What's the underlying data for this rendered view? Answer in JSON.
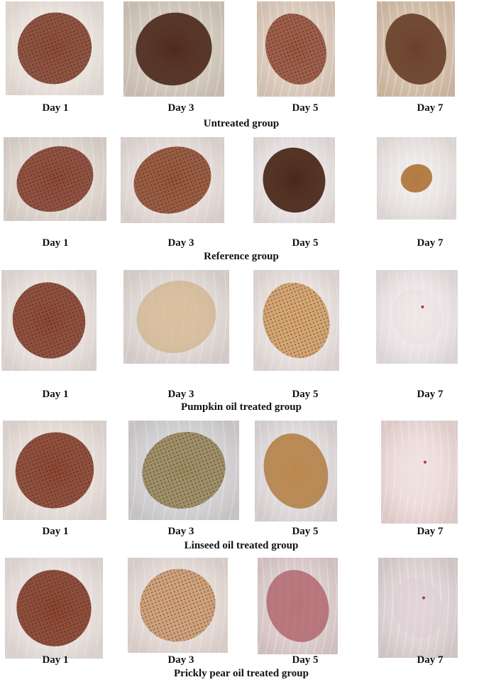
{
  "day_labels": [
    "Day 1",
    "Day 3",
    "Day 5",
    "Day 7"
  ],
  "groups": [
    {
      "caption": "Untreated group",
      "photos": [
        {
          "day": "Day 1",
          "skin": "#f2ece6",
          "wound": "#8a4a36",
          "pattern": "mesh"
        },
        {
          "day": "Day 3",
          "skin": "#d8cec2",
          "wound": "#4e2a1c",
          "pattern": "solid"
        },
        {
          "day": "Day 5",
          "skin": "#e3d2c2",
          "wound": "#9a5640",
          "pattern": "mesh"
        },
        {
          "day": "Day 7",
          "skin": "#d9c4ac",
          "wound": "#6a4028",
          "pattern": "solid"
        }
      ]
    },
    {
      "caption": "Reference group",
      "photos": [
        {
          "day": "Day 1",
          "skin": "#e6ded8",
          "wound": "#8c4836",
          "pattern": "mesh"
        },
        {
          "day": "Day 3",
          "skin": "#ece4e2",
          "wound": "#955438",
          "pattern": "mesh"
        },
        {
          "day": "Day 5",
          "skin": "#eeeaea",
          "wound": "#4a2718",
          "pattern": "solid"
        },
        {
          "day": "Day 7",
          "skin": "#f0ecec",
          "wound": "#b27a40",
          "pattern": "scab"
        }
      ]
    },
    {
      "caption": "Pumpkin oil treated group",
      "photos": [
        {
          "day": "Day 1",
          "skin": "#eee8e4",
          "wound": "#8c4634",
          "pattern": "mesh"
        },
        {
          "day": "Day 3",
          "skin": "#e6e0de",
          "wound": "#d4b488",
          "pattern": "faint"
        },
        {
          "day": "Day 5",
          "skin": "#efe8e6",
          "wound": "#d6a46c",
          "pattern": "mesh"
        },
        {
          "day": "Day 7",
          "skin": "#f1ecee",
          "wound": "#ece4e4",
          "pattern": "healed"
        }
      ]
    },
    {
      "caption": "Linseed oil treated group",
      "photos": [
        {
          "day": "Day 1",
          "skin": "#eee6e2",
          "wound": "#8c4632",
          "pattern": "mesh"
        },
        {
          "day": "Day 3",
          "skin": "#d8d8dc",
          "wound": "#9c8c62",
          "pattern": "mesh"
        },
        {
          "day": "Day 5",
          "skin": "#e6e2e4",
          "wound": "#b9874e",
          "pattern": "solid"
        },
        {
          "day": "Day 7",
          "skin": "#f2e0e0",
          "wound": "#f0e0e0",
          "pattern": "healed"
        }
      ]
    },
    {
      "caption": "Prickly pear oil treated group",
      "photos": [
        {
          "day": "Day 1",
          "skin": "#efe8e6",
          "wound": "#8a4430",
          "pattern": "mesh"
        },
        {
          "day": "Day 3",
          "skin": "#ece2de",
          "wound": "#d0a076",
          "pattern": "mesh"
        },
        {
          "day": "Day 5",
          "skin": "#e2d2d4",
          "wound": "#a8505a",
          "pattern": "faint"
        },
        {
          "day": "Day 7",
          "skin": "#e4d8dc",
          "wound": "#e0d0d4",
          "pattern": "healed"
        }
      ]
    }
  ]
}
